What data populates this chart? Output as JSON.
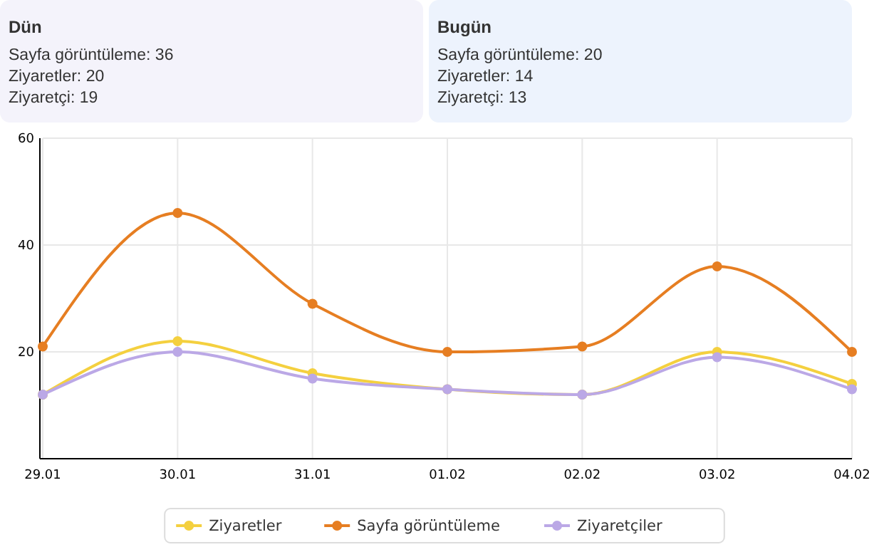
{
  "chart_data": {
    "type": "line",
    "annotations": [
      "Dün",
      "Sayfa görüntüleme: 36",
      "Ziyaretler: 20",
      "Ziyaretçi: 19",
      "Bugün",
      "Sayfa görüntüleme: 20",
      "Ziyaretler: 14",
      "Ziyaretçi: 13"
    ],
    "categories": [
      "29.01",
      "30.01",
      "31.01",
      "01.02",
      "02.02",
      "03.02",
      "04.02"
    ],
    "series": [
      {
        "name": "Ziyaretler",
        "color": "#f4d03f",
        "values": [
          12,
          22,
          16,
          13,
          12,
          20,
          14
        ]
      },
      {
        "name": "Sayfa görüntüleme",
        "color": "#e67e22",
        "values": [
          21,
          46,
          29,
          20,
          21,
          36,
          20
        ]
      },
      {
        "name": "Ziyaretçiler",
        "color": "#bba8e6",
        "values": [
          12,
          20,
          15,
          13,
          12,
          19,
          13
        ]
      }
    ],
    "ylim": [
      0,
      60
    ],
    "yticks": [
      20,
      40,
      60
    ],
    "grid": true,
    "legend": "bottom",
    "marker": "circle",
    "line_style": "solid"
  }
}
